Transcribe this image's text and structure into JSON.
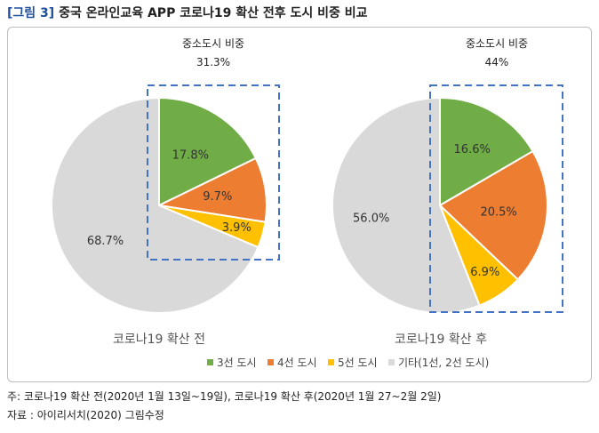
{
  "figure": {
    "label": "[그림 3]",
    "title": "중국 온라인교육 APP 코로나19 확산 전후 도시 비중 비교"
  },
  "notes": {
    "footnote": "주: 코로나19 확산 전(2020년 1월 13일~19일), 코로나19 확산 후(2020년 1월 27~2월 2일)",
    "source": "자료 : 아이리서치(2020) 그림수정"
  },
  "colors": {
    "tier3": "#70ad47",
    "tier4": "#ed7d31",
    "tier5": "#ffc000",
    "other": "#d9d9d9",
    "highlight_box": "#4472c4"
  },
  "chart_data": [
    {
      "type": "pie",
      "title": "코로나19 확산 전",
      "annotation": {
        "label": "중소도시 비중",
        "value": "31.3%"
      },
      "categories": [
        "3선 도시",
        "4선 도시",
        "5선 도시",
        "기타(1선, 2선 도시)"
      ],
      "values": [
        17.8,
        9.7,
        3.9,
        68.7
      ],
      "value_labels": [
        "17.8%",
        "9.7%",
        "3.9%",
        "68.7%"
      ]
    },
    {
      "type": "pie",
      "title": "코로나19 확산 후",
      "annotation": {
        "label": "중소도시 비중",
        "value": "44%"
      },
      "categories": [
        "3선 도시",
        "4선 도시",
        "5선 도시",
        "기타(1선, 2선 도시)"
      ],
      "values": [
        16.6,
        20.5,
        6.9,
        56.0
      ],
      "value_labels": [
        "16.6%",
        "20.5%",
        "6.9%",
        "56.0%"
      ]
    }
  ],
  "legend": {
    "position": "bottom-right",
    "items": [
      "3선 도시",
      "4선 도시",
      "5선 도시",
      "기타(1선, 2선 도시)"
    ]
  }
}
